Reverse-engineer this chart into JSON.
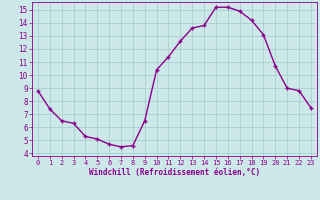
{
  "x": [
    0,
    1,
    2,
    3,
    4,
    5,
    6,
    7,
    8,
    9,
    10,
    11,
    12,
    13,
    14,
    15,
    16,
    17,
    18,
    19,
    20,
    21,
    22,
    23
  ],
  "y": [
    8.8,
    7.4,
    6.5,
    6.3,
    5.3,
    5.1,
    4.7,
    4.5,
    4.6,
    6.5,
    10.4,
    11.4,
    12.6,
    13.6,
    13.8,
    15.2,
    15.2,
    14.9,
    14.2,
    13.1,
    10.7,
    9.0,
    8.8,
    7.5
  ],
  "line_color": "#8B008B",
  "marker": "+",
  "marker_color": "#8B008B",
  "bg_color": "#cce8e8",
  "grid_color": "#aacece",
  "xlabel": "Windchill (Refroidissement éolien,°C)",
  "xlabel_color": "#8B008B",
  "tick_color": "#8B008B",
  "ylim": [
    3.8,
    15.6
  ],
  "xlim": [
    -0.5,
    23.5
  ],
  "yticks": [
    4,
    5,
    6,
    7,
    8,
    9,
    10,
    11,
    12,
    13,
    14,
    15
  ],
  "xticks": [
    0,
    1,
    2,
    3,
    4,
    5,
    6,
    7,
    8,
    9,
    10,
    11,
    12,
    13,
    14,
    15,
    16,
    17,
    18,
    19,
    20,
    21,
    22,
    23
  ],
  "spine_color": "#8B008B",
  "line_width": 1.0,
  "marker_size": 3.5
}
